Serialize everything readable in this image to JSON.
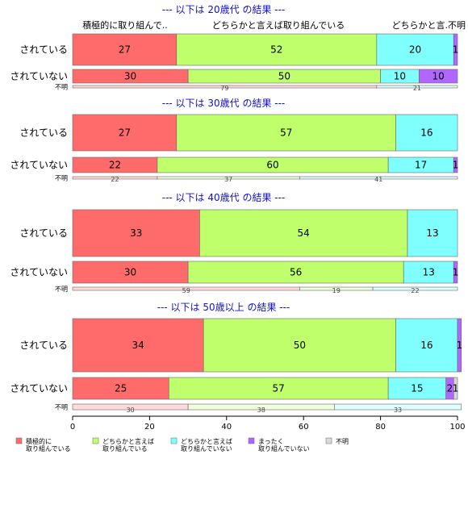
{
  "chart_data": {
    "type": "bar",
    "orientation": "horizontal",
    "stacked": "percent",
    "xlim": [
      0,
      100
    ],
    "xticks": [
      0,
      20,
      40,
      60,
      80,
      100
    ],
    "grid": false,
    "legend_position": "bottom",
    "header_labels": [
      "積極的に取り組んで..",
      "どちらかと言えば取り組んでいる",
      "どちらかと言..",
      "不明"
    ],
    "series": [
      {
        "name": "積極的に\n取り組んでいる",
        "color": "#ff6b6b"
      },
      {
        "name": "どちらかと言えば\n取り組んでいる",
        "color": "#bfff6b"
      },
      {
        "name": "どちらかと言えば\n取り組んでいない",
        "color": "#80ffff"
      },
      {
        "name": "まったく\n取り組んでいない",
        "color": "#b066ff"
      },
      {
        "name": "不明",
        "color": "#d9d9d9"
      }
    ],
    "panels": [
      {
        "title": "--- 以下は 20歳代 の結果 ---",
        "rows": [
          {
            "label": "されている",
            "values": [
              27,
              52,
              20,
              1,
              0
            ]
          },
          {
            "label": "されていない",
            "values": [
              30,
              50,
              10,
              10,
              0
            ]
          }
        ],
        "unknown": {
          "label": "不明",
          "values": [
            79,
            0,
            21,
            0,
            0
          ]
        }
      },
      {
        "title": "--- 以下は 30歳代 の結果 ---",
        "rows": [
          {
            "label": "されている",
            "values": [
              27,
              57,
              16,
              0,
              0
            ]
          },
          {
            "label": "されていない",
            "values": [
              22,
              60,
              17,
              1,
              0
            ]
          }
        ],
        "unknown": {
          "label": "不明",
          "values": [
            22,
            37,
            41,
            0,
            0
          ]
        }
      },
      {
        "title": "--- 以下は 40歳代 の結果 ---",
        "rows": [
          {
            "label": "されている",
            "values": [
              33,
              54,
              13,
              0,
              0
            ]
          },
          {
            "label": "されていない",
            "values": [
              30,
              56,
              13,
              1,
              0
            ]
          }
        ],
        "unknown": {
          "label": "不明",
          "values": [
            59,
            19,
            22,
            0,
            0
          ]
        }
      },
      {
        "title": "--- 以下は 50歳以上 の結果 ---",
        "rows": [
          {
            "label": "されている",
            "values": [
              34,
              50,
              16,
              1,
              0
            ]
          },
          {
            "label": "されていない",
            "values": [
              25,
              57,
              15,
              2,
              1
            ]
          }
        ],
        "unknown": {
          "label": "不明",
          "values": [
            30,
            38,
            33,
            0,
            0
          ]
        }
      }
    ]
  }
}
